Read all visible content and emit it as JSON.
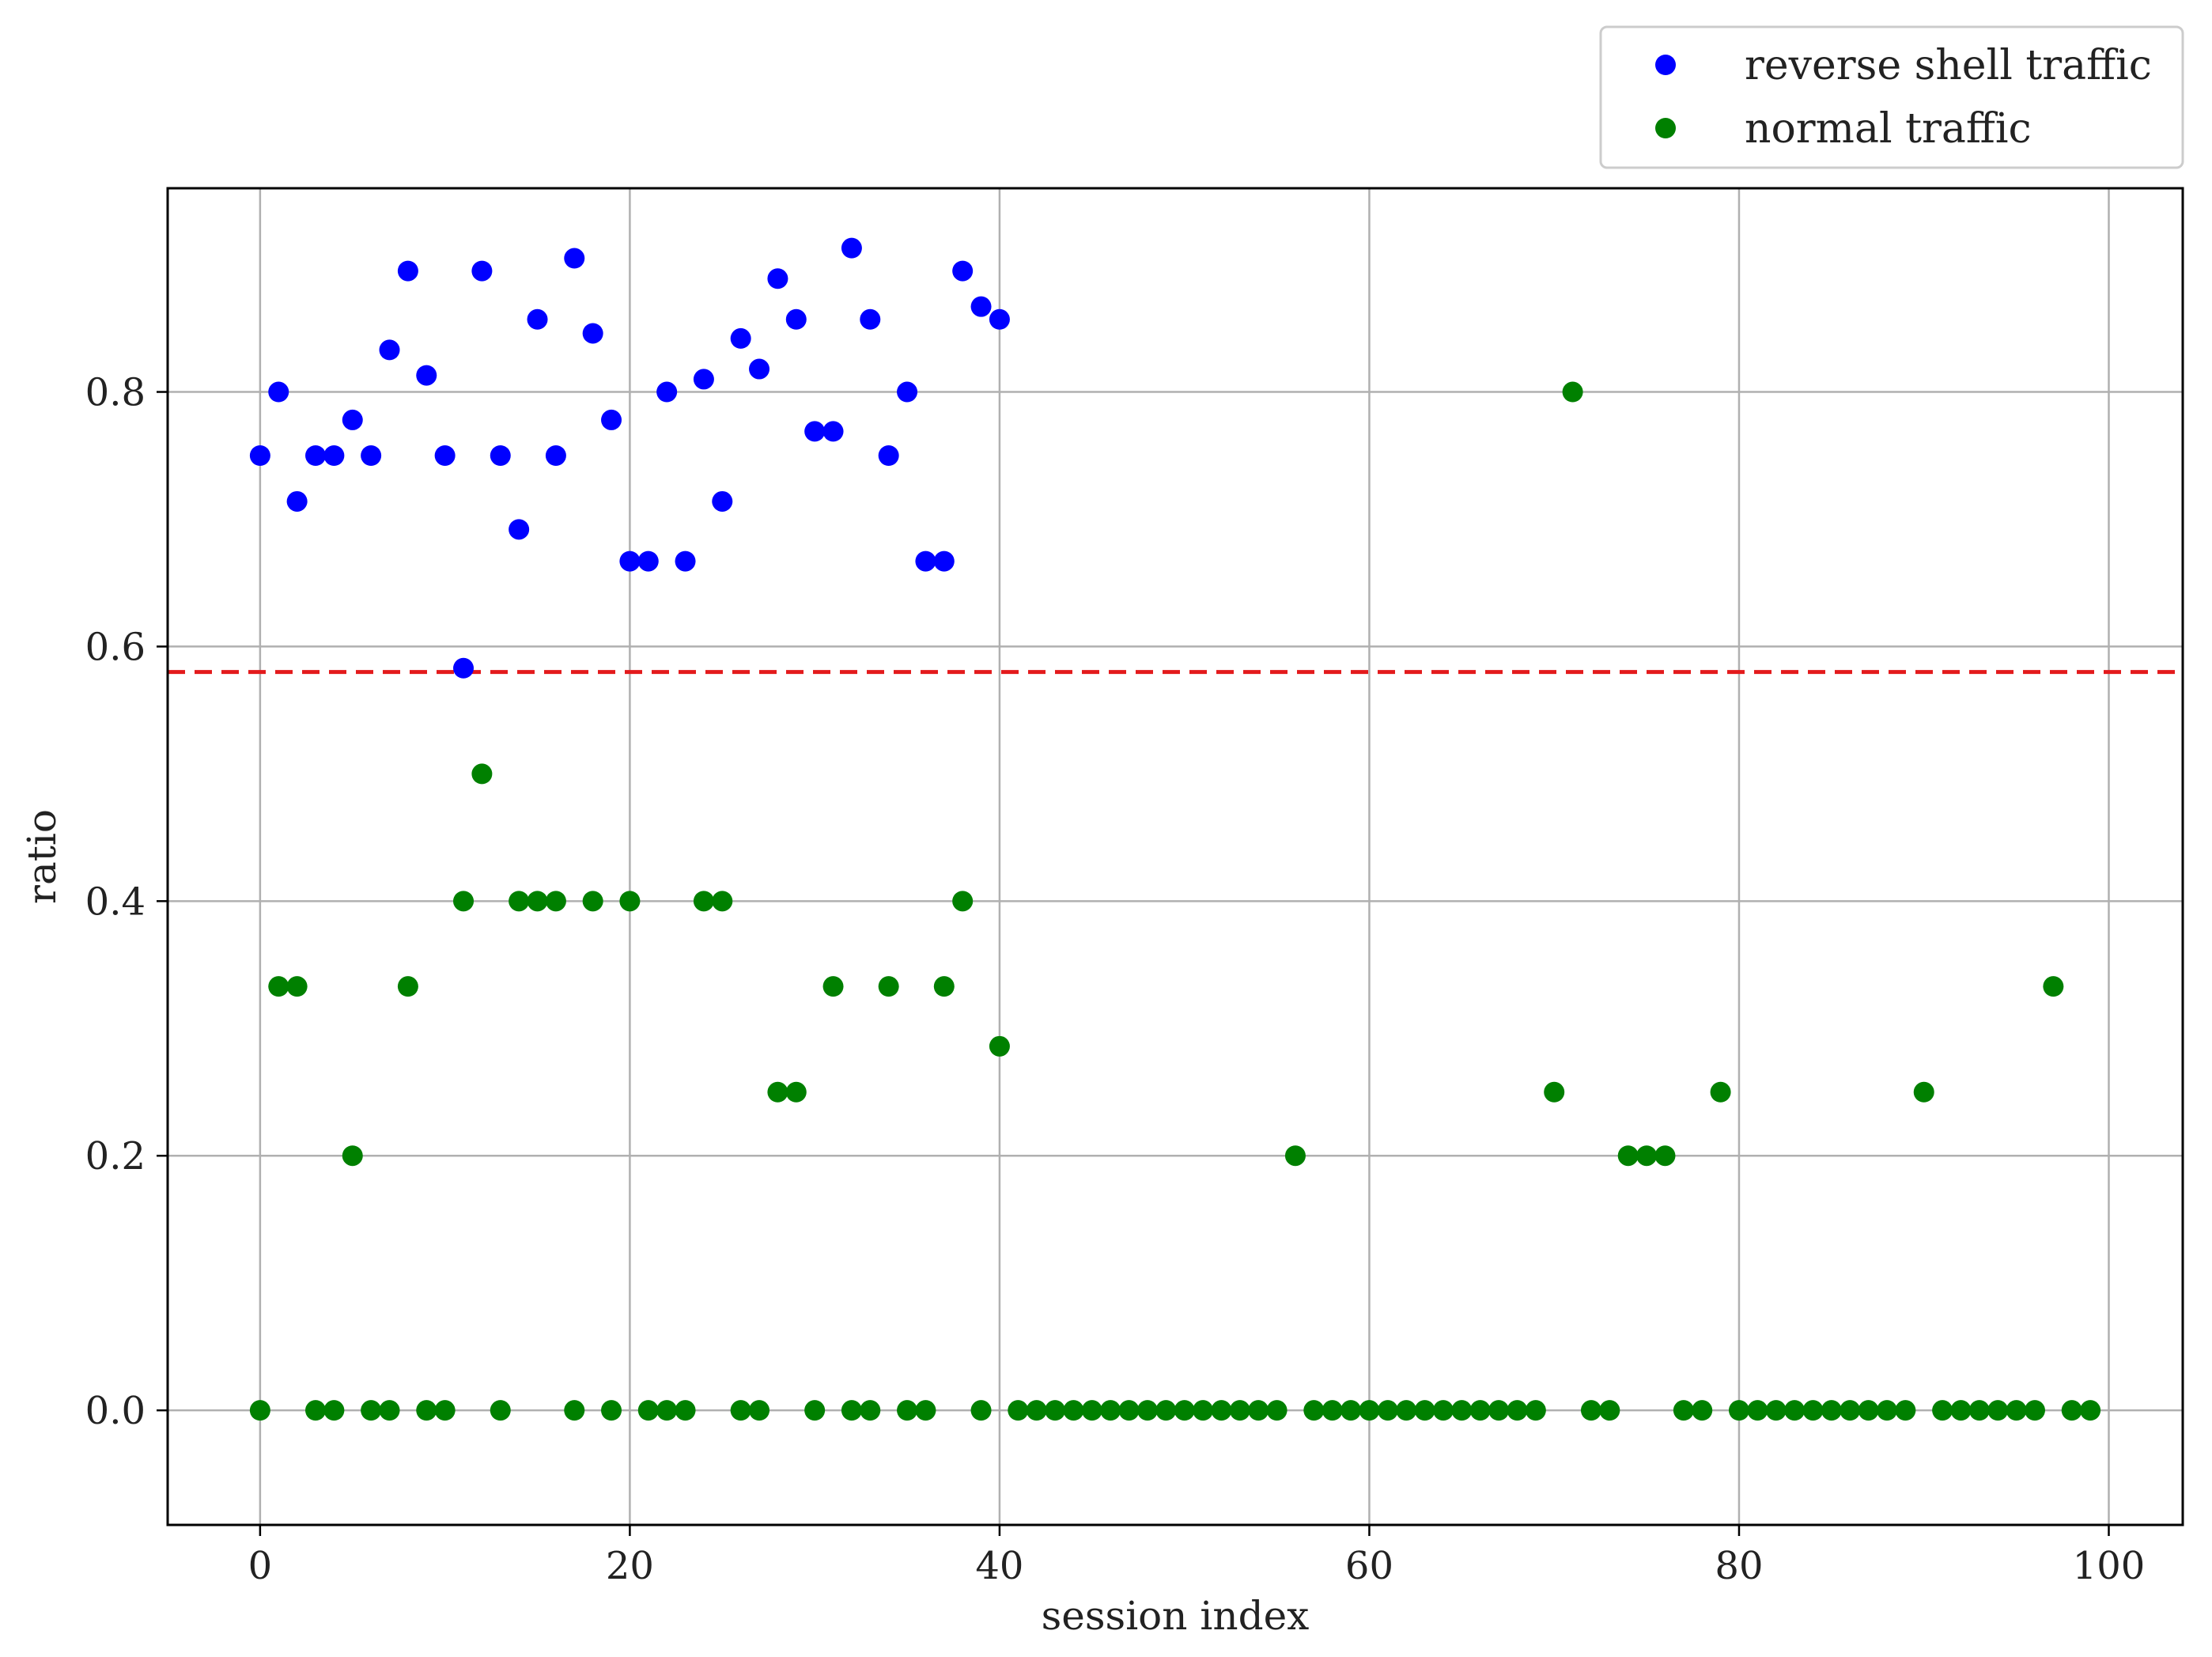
{
  "chart_data": {
    "type": "scatter",
    "xlabel": "session index",
    "ylabel": "ratio",
    "xlim": [
      -5,
      104
    ],
    "ylim": [
      -0.09,
      0.96
    ],
    "xticks": [
      0,
      20,
      40,
      60,
      80,
      100
    ],
    "yticks": [
      0.0,
      0.2,
      0.4,
      0.6,
      0.8
    ],
    "ytick_labels": [
      "0.0",
      "0.2",
      "0.4",
      "0.6",
      "0.8"
    ],
    "grid": true,
    "legend_position": "top-right, above plot",
    "threshold": {
      "y": 0.58,
      "color": "#e31a1c",
      "style": "dashed"
    },
    "series": [
      {
        "name": "reverse shell traffic",
        "color": "#0000ff",
        "points": [
          [
            0,
            0.75
          ],
          [
            1,
            0.8
          ],
          [
            2,
            0.714
          ],
          [
            3,
            0.75
          ],
          [
            4,
            0.75
          ],
          [
            5,
            0.778
          ],
          [
            6,
            0.75
          ],
          [
            7,
            0.833
          ],
          [
            8,
            0.895
          ],
          [
            9,
            0.813
          ],
          [
            10,
            0.75
          ],
          [
            11,
            0.583
          ],
          [
            12,
            0.895
          ],
          [
            13,
            0.75
          ],
          [
            14,
            0.692
          ],
          [
            15,
            0.857
          ],
          [
            16,
            0.75
          ],
          [
            17,
            0.905
          ],
          [
            18,
            0.846
          ],
          [
            19,
            0.778
          ],
          [
            20,
            0.667
          ],
          [
            21,
            0.667
          ],
          [
            22,
            0.8
          ],
          [
            23,
            0.667
          ],
          [
            24,
            0.81
          ],
          [
            25,
            0.714
          ],
          [
            26,
            0.842
          ],
          [
            27,
            0.818
          ],
          [
            28,
            0.889
          ],
          [
            29,
            0.857
          ],
          [
            30,
            0.769
          ],
          [
            31,
            0.769
          ],
          [
            32,
            0.913
          ],
          [
            33,
            0.857
          ],
          [
            34,
            0.75
          ],
          [
            35,
            0.8
          ],
          [
            36,
            0.667
          ],
          [
            37,
            0.667
          ],
          [
            38,
            0.895
          ],
          [
            39,
            0.867
          ],
          [
            40,
            0.857
          ]
        ]
      },
      {
        "name": "normal traffic",
        "color": "#008000",
        "points": [
          [
            0,
            0.0
          ],
          [
            1,
            0.333
          ],
          [
            2,
            0.333
          ],
          [
            3,
            0.0
          ],
          [
            4,
            0.0
          ],
          [
            5,
            0.2
          ],
          [
            6,
            0.0
          ],
          [
            7,
            0.0
          ],
          [
            8,
            0.333
          ],
          [
            9,
            0.0
          ],
          [
            10,
            0.0
          ],
          [
            11,
            0.4
          ],
          [
            12,
            0.5
          ],
          [
            13,
            0.0
          ],
          [
            14,
            0.4
          ],
          [
            15,
            0.4
          ],
          [
            16,
            0.4
          ],
          [
            17,
            0.0
          ],
          [
            18,
            0.4
          ],
          [
            19,
            0.0
          ],
          [
            20,
            0.4
          ],
          [
            21,
            0.0
          ],
          [
            22,
            0.0
          ],
          [
            23,
            0.0
          ],
          [
            24,
            0.4
          ],
          [
            25,
            0.4
          ],
          [
            26,
            0.0
          ],
          [
            27,
            0.0
          ],
          [
            28,
            0.25
          ],
          [
            29,
            0.25
          ],
          [
            30,
            0.0
          ],
          [
            31,
            0.333
          ],
          [
            32,
            0.0
          ],
          [
            33,
            0.0
          ],
          [
            34,
            0.333
          ],
          [
            35,
            0.0
          ],
          [
            36,
            0.0
          ],
          [
            37,
            0.333
          ],
          [
            38,
            0.4
          ],
          [
            39,
            0.0
          ],
          [
            40,
            0.286
          ],
          [
            41,
            0.0
          ],
          [
            42,
            0.0
          ],
          [
            43,
            0.0
          ],
          [
            44,
            0.0
          ],
          [
            45,
            0.0
          ],
          [
            46,
            0.0
          ],
          [
            47,
            0.0
          ],
          [
            48,
            0.0
          ],
          [
            49,
            0.0
          ],
          [
            50,
            0.0
          ],
          [
            51,
            0.0
          ],
          [
            52,
            0.0
          ],
          [
            53,
            0.0
          ],
          [
            54,
            0.0
          ],
          [
            55,
            0.0
          ],
          [
            56,
            0.2
          ],
          [
            57,
            0.0
          ],
          [
            58,
            0.0
          ],
          [
            59,
            0.0
          ],
          [
            60,
            0.0
          ],
          [
            61,
            0.0
          ],
          [
            62,
            0.0
          ],
          [
            63,
            0.0
          ],
          [
            64,
            0.0
          ],
          [
            65,
            0.0
          ],
          [
            66,
            0.0
          ],
          [
            67,
            0.0
          ],
          [
            68,
            0.0
          ],
          [
            69,
            0.0
          ],
          [
            70,
            0.25
          ],
          [
            71,
            0.8
          ],
          [
            72,
            0.0
          ],
          [
            73,
            0.0
          ],
          [
            74,
            0.2
          ],
          [
            75,
            0.2
          ],
          [
            76,
            0.2
          ],
          [
            77,
            0.0
          ],
          [
            78,
            0.0
          ],
          [
            79,
            0.25
          ],
          [
            80,
            0.0
          ],
          [
            81,
            0.0
          ],
          [
            82,
            0.0
          ],
          [
            83,
            0.0
          ],
          [
            84,
            0.0
          ],
          [
            85,
            0.0
          ],
          [
            86,
            0.0
          ],
          [
            87,
            0.0
          ],
          [
            88,
            0.0
          ],
          [
            89,
            0.0
          ],
          [
            90,
            0.25
          ],
          [
            91,
            0.0
          ],
          [
            92,
            0.0
          ],
          [
            93,
            0.0
          ],
          [
            94,
            0.0
          ],
          [
            95,
            0.0
          ],
          [
            96,
            0.0
          ],
          [
            97,
            0.333
          ],
          [
            98,
            0.0
          ],
          [
            99,
            0.0
          ]
        ]
      }
    ]
  }
}
